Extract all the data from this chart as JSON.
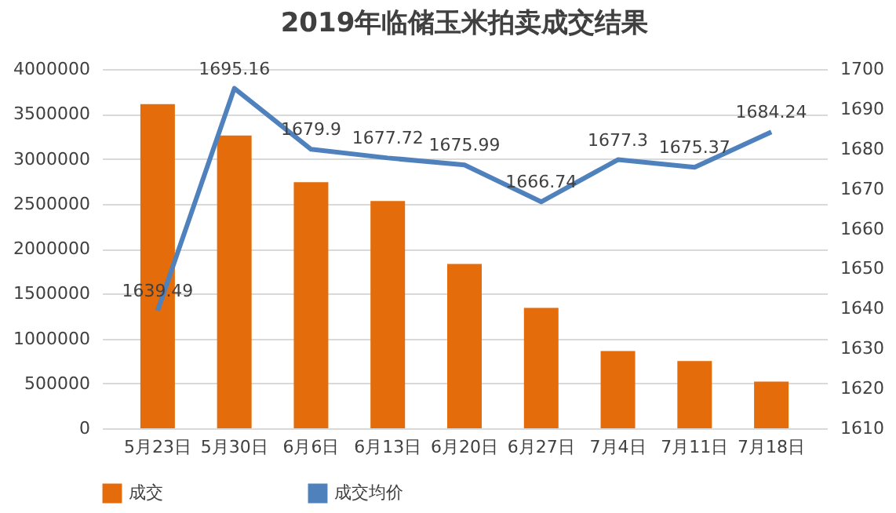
{
  "chart_data": {
    "type": "bar",
    "title": "2019年临储玉米拍卖成交结果",
    "categories": [
      "5月23日",
      "5月30日",
      "6月6日",
      "6月13日",
      "6月20日",
      "6月27日",
      "7月4日",
      "7月11日",
      "7月18日"
    ],
    "series": [
      {
        "name": "成交",
        "color": "#e46c0a",
        "values": [
          3610000,
          3260000,
          2740000,
          2530000,
          1830000,
          1340000,
          860000,
          750000,
          520000
        ]
      },
      {
        "name": "成交均价",
        "type": "line",
        "axis": "y2",
        "color": "#4f81bd",
        "values": [
          1639.49,
          1695.16,
          1679.9,
          1677.72,
          1675.99,
          1666.74,
          1677.3,
          1675.37,
          1684.24
        ],
        "value_labels": [
          "1639.49",
          "1695.16",
          "1679.9",
          "1677.72",
          "1675.99",
          "1666.74",
          "1677.3",
          "1675.37",
          "1684.24"
        ]
      }
    ],
    "ylim": [
      0,
      4000000
    ],
    "yticks": [
      0,
      500000,
      1000000,
      1500000,
      2000000,
      2500000,
      3000000,
      3500000,
      4000000
    ],
    "y2lim": [
      1610,
      1700
    ],
    "y2ticks": [
      1610,
      1620,
      1630,
      1640,
      1650,
      1660,
      1670,
      1680,
      1690,
      1700
    ],
    "grid": "y",
    "legend": "bottom"
  }
}
